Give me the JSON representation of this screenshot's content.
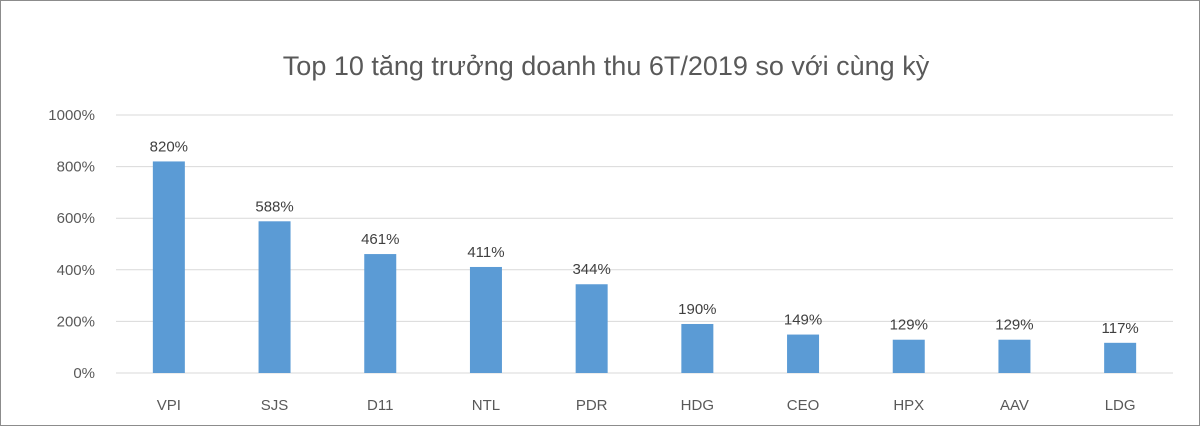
{
  "chart_data": {
    "type": "bar",
    "title": "Top 10 tăng trưởng doanh thu 6T/2019 so với cùng kỳ",
    "categories": [
      "VPI",
      "SJS",
      "D11",
      "NTL",
      "PDR",
      "HDG",
      "CEO",
      "HPX",
      "AAV",
      "LDG"
    ],
    "values": [
      820,
      588,
      461,
      411,
      344,
      190,
      149,
      129,
      129,
      117
    ],
    "data_labels": [
      "820%",
      "588%",
      "461%",
      "411%",
      "344%",
      "190%",
      "149%",
      "129%",
      "129%",
      "117%"
    ],
    "y_ticks": [
      0,
      200,
      400,
      600,
      800,
      1000
    ],
    "y_tick_labels": [
      "0%",
      "200%",
      "400%",
      "600%",
      "800%",
      "1000%"
    ],
    "ylim": [
      0,
      1000
    ],
    "grid": true,
    "legend": "none",
    "colors": {
      "bar": "#5B9BD5",
      "grid": "#D9D9D9",
      "text": "#595959",
      "border": "#8C8C8C"
    }
  }
}
